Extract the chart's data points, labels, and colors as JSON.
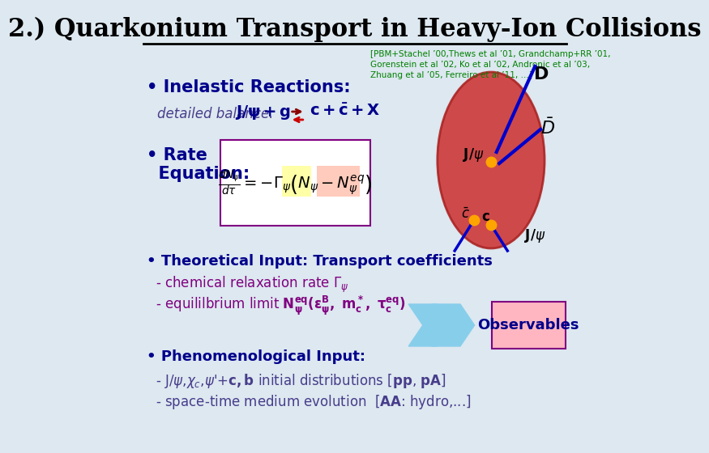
{
  "title": "2.) Quarkonium Transport in Heavy-Ion Collisions",
  "bg_color": "#dde8f0",
  "title_color": "#000000",
  "ref_text_line1": "[PBM+Stachel ’00,Thews et al ’01, Grandchamp+RR ’01,",
  "ref_text_line2": "Gorenstein et al ’02, Ko et al ’02, Andronic et al ’03,",
  "ref_text_line3": "Zhuang et al ’05, Ferreiro et al ’11, …]",
  "ref_color": "#008000",
  "bullet1_header": "• Inelastic Reactions:",
  "bullet1_header_color": "#00008B",
  "bullet2_header_color": "#00008B",
  "bullet3_header": "• Theoretical Input: Transport coefficients",
  "bullet3_color": "#00008B",
  "sub3_color": "#800080",
  "bullet4_header": "• Phenomenological Input:",
  "bullet4_color": "#00008B",
  "sub4_color": "#483D8B",
  "obs_text": "Observables",
  "obs_box_facecolor": "#FFB6C1",
  "obs_box_edgecolor": "#800080",
  "obs_text_color": "#00008B",
  "arrow_color": "#87CEEB",
  "rate_box_edgecolor": "#800080",
  "rate_box_facecolor": "#ffffff",
  "gamma_highlight": "#FFFF99",
  "neq_highlight": "#FFB6A0",
  "ellipse_facecolor": "#CC3333",
  "ellipse_edgecolor": "#AA2222",
  "blue_line_color": "#0000CC",
  "orange_dot_color": "#FFA500",
  "detailed_label_color": "#483D8B",
  "db_eq_color": "#00008B",
  "sub4a_bold_color": "#00008B"
}
